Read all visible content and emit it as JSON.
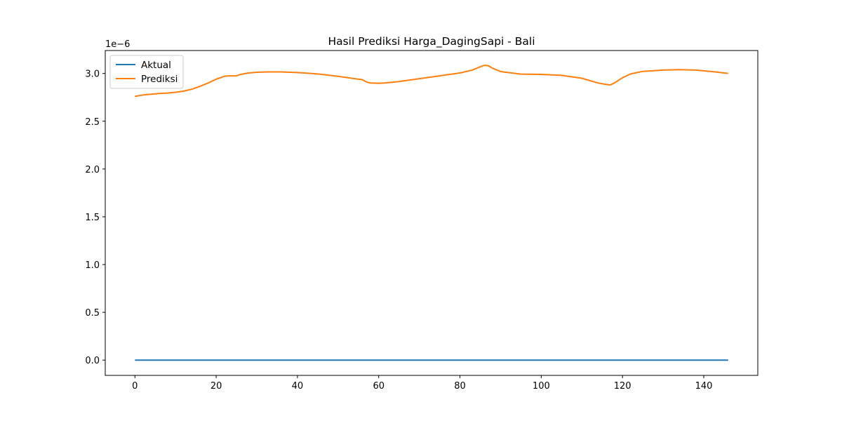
{
  "chart_data": {
    "type": "line",
    "title": "Hasil Prediksi Harga_DagingSapi - Bali",
    "xlabel": "",
    "ylabel": "",
    "y_offset_label": "1e−6",
    "xlim": [
      -7.3,
      153.3
    ],
    "ylim": [
      -0.16,
      3.24
    ],
    "xticks": [
      0,
      20,
      40,
      60,
      80,
      100,
      120,
      140
    ],
    "xtick_labels": [
      "0",
      "20",
      "40",
      "60",
      "80",
      "100",
      "120",
      "140"
    ],
    "yticks": [
      0.0,
      0.5,
      1.0,
      1.5,
      2.0,
      2.5,
      3.0
    ],
    "ytick_labels": [
      "0.0",
      "0.5",
      "1.0",
      "1.5",
      "2.0",
      "2.5",
      "3.0"
    ],
    "grid": false,
    "legend_position": "top-left",
    "series": [
      {
        "name": "Aktual",
        "color": "#1f77b4",
        "x": [
          0,
          146
        ],
        "y": [
          0.0,
          0.0
        ]
      },
      {
        "name": "Prediksi",
        "color": "#ff7f0e",
        "x": [
          0,
          2,
          4,
          6,
          8,
          10,
          12,
          14,
          16,
          18,
          20,
          22,
          23,
          24,
          25,
          26,
          28,
          30,
          33,
          36,
          40,
          45,
          50,
          55,
          56,
          57,
          58,
          60,
          62,
          65,
          70,
          75,
          80,
          83,
          85,
          86,
          87,
          88,
          90,
          95,
          100,
          105,
          110,
          114,
          116,
          117,
          118,
          120,
          122,
          125,
          130,
          134,
          138,
          142,
          146
        ],
        "y": [
          2.76,
          2.775,
          2.783,
          2.79,
          2.795,
          2.803,
          2.815,
          2.835,
          2.865,
          2.9,
          2.94,
          2.97,
          2.975,
          2.975,
          2.975,
          2.99,
          3.005,
          3.012,
          3.016,
          3.016,
          3.01,
          2.995,
          2.97,
          2.94,
          2.935,
          2.91,
          2.9,
          2.897,
          2.902,
          2.915,
          2.945,
          2.975,
          3.005,
          3.035,
          3.07,
          3.085,
          3.08,
          3.055,
          3.02,
          2.993,
          2.99,
          2.98,
          2.95,
          2.9,
          2.885,
          2.88,
          2.9,
          2.955,
          2.995,
          3.022,
          3.035,
          3.04,
          3.035,
          3.02,
          3.0
        ]
      }
    ]
  }
}
